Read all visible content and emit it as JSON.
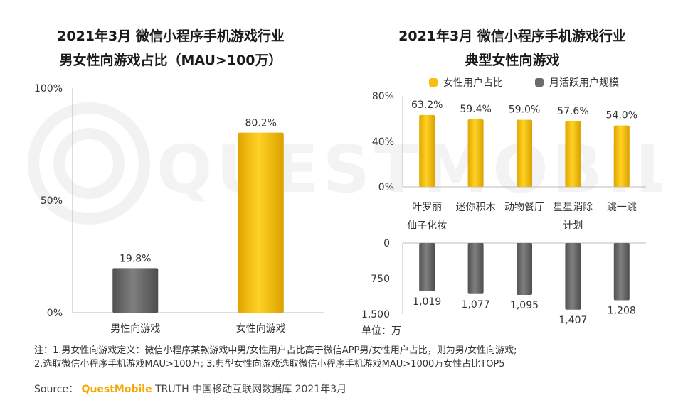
{
  "left_title": {
    "line1": "2021年3月 微信小程序手机游戏行业",
    "line2": "男女性向游戏占比（MAU>100万）"
  },
  "right_title": {
    "line1": "2021年3月 微信小程序手机游戏行业",
    "line2": "典型女性向游戏"
  },
  "legend": [
    {
      "label": "女性用户占比",
      "color": "#F9BE10"
    },
    {
      "label": "月活跃用户规模",
      "color": "#6B6B6B"
    }
  ],
  "unit_label": "单位：万",
  "notes": {
    "line1": "注：1.男女性向游戏定义：微信小程序某款游戏中男/女性用户占比高于微信APP男/女性用户占比，则为男/女性向游戏;",
    "line2": "2.选取微信小程序手机游戏MAU>100万; 3.典型女性向游戏选取微信小程序手机游戏MAU>1000万女性占比TOP5"
  },
  "source": {
    "prefix": "Source：",
    "brand": "QuestMobile",
    "rest": " TRUTH 中国移动互联网数据库 2021年3月"
  },
  "watermark": "QUESTMOBILE",
  "colors": {
    "yellow": "#F9BE10",
    "gray": "#6B6B6B"
  },
  "chart_data": [
    {
      "type": "bar",
      "title": "2021年3月 微信小程序手机游戏行业 男女性向游戏占比（MAU>100万）",
      "categories": [
        "男性向游戏",
        "女性向游戏"
      ],
      "values": [
        19.8,
        80.2
      ],
      "value_labels": [
        "19.8%",
        "80.2%"
      ],
      "bar_colors": [
        "#6B6B6B",
        "#F9BE10"
      ],
      "ylim": [
        0,
        100
      ],
      "yticks": [
        "0%",
        "50%",
        "100%"
      ],
      "xlabel": "",
      "ylabel": "",
      "grid": false
    },
    {
      "type": "bar",
      "title": "2021年3月 微信小程序手机游戏行业 典型女性向游戏",
      "categories": [
        "叶罗丽仙子化妆",
        "迷你积木",
        "动物餐厅",
        "星星消除计划",
        "跳一跳"
      ],
      "category_lines": [
        [
          "叶罗丽",
          "仙子化妆"
        ],
        [
          "迷你积木"
        ],
        [
          "动物餐厅"
        ],
        [
          "星星消除",
          "计划"
        ],
        [
          "跳一跳"
        ]
      ],
      "series": [
        {
          "name": "女性用户占比",
          "values": [
            63.2,
            59.4,
            59.0,
            57.6,
            54.0
          ],
          "value_labels": [
            "63.2%",
            "59.4%",
            "59.0%",
            "57.6%",
            "54.0%"
          ],
          "ylim": [
            0,
            80
          ],
          "yticks": [
            "0%",
            "40%",
            "80%"
          ]
        },
        {
          "name": "月活跃用户规模",
          "values": [
            1019,
            1077,
            1095,
            1407,
            1208
          ],
          "value_labels": [
            "1,019",
            "1,077",
            "1,095",
            "1,407",
            "1,208"
          ],
          "ylim": [
            0,
            1500
          ],
          "yticks": [
            "0",
            "750",
            "1,500"
          ],
          "inverted": true
        }
      ],
      "legend_position": "top",
      "grid": false
    }
  ]
}
